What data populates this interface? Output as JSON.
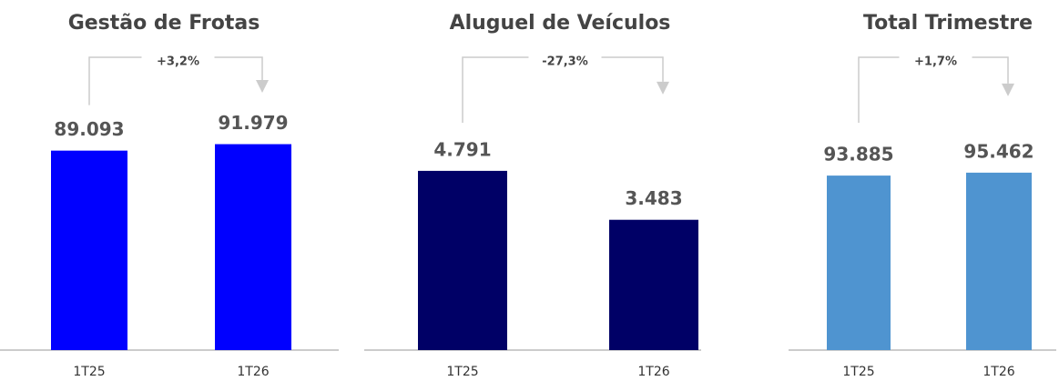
{
  "chart_data": [
    {
      "type": "bar",
      "title": "Gestão de Frotas",
      "annotation": "+3,2%",
      "categories": [
        "1T25",
        "1T26"
      ],
      "values": [
        89093,
        91979
      ],
      "value_labels": [
        "89.093",
        "91.979"
      ],
      "color": "#0000ff",
      "ylim": [
        0,
        132000
      ]
    },
    {
      "type": "bar",
      "title": "Aluguel de Veículos",
      "annotation": "-27,3%",
      "categories": [
        "1T25",
        "1T26"
      ],
      "values": [
        4791,
        3483
      ],
      "value_labels": [
        "4.791",
        "3.483"
      ],
      "color": "#000066",
      "ylim": [
        0,
        7900
      ]
    },
    {
      "type": "bar",
      "title": "Total Trimestre",
      "annotation": "+1,7%",
      "categories": [
        "1T25",
        "1T26"
      ],
      "values": [
        93885,
        95462
      ],
      "value_labels": [
        "93.885",
        "95.462"
      ],
      "color": "#4f94d0",
      "ylim": [
        0,
        159000
      ]
    }
  ]
}
